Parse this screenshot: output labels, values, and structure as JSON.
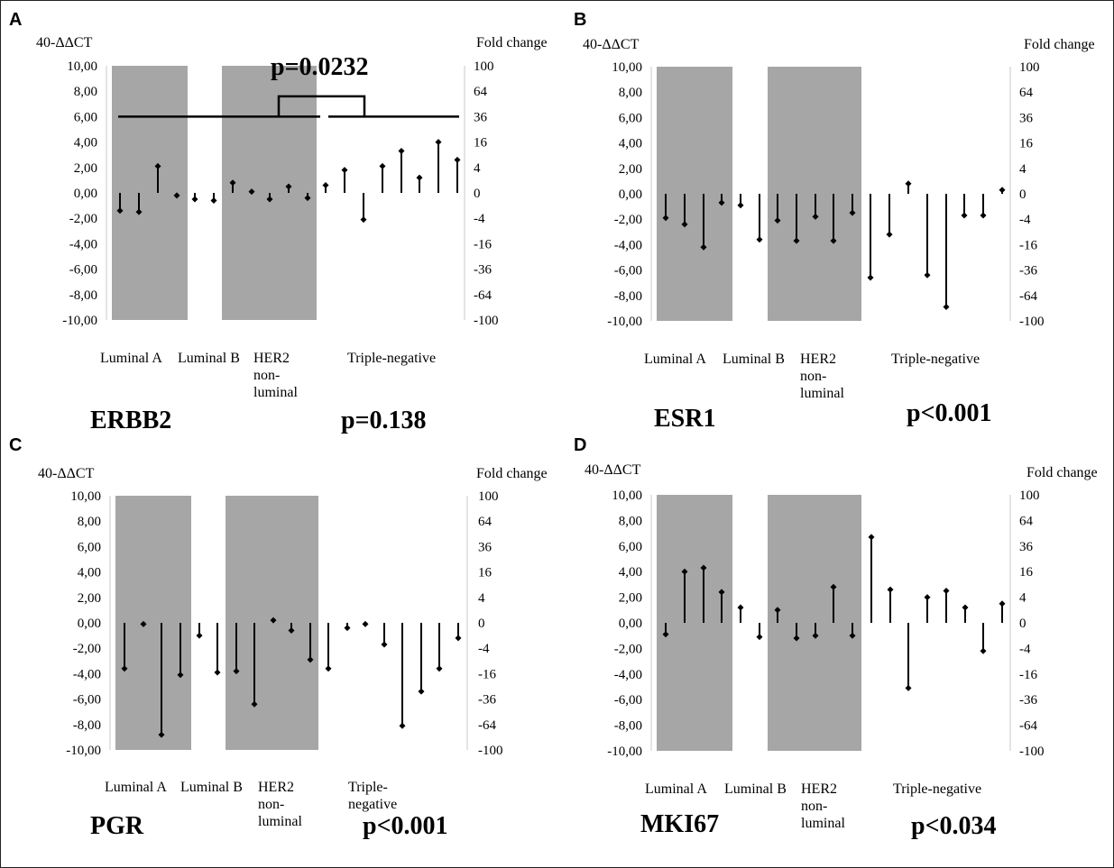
{
  "chart_data": [
    {
      "panel": "A",
      "type": "bar",
      "gene": "ERBB2",
      "p_value": "p=0.138",
      "bracket_p_value": "p=0.0232",
      "bracket_level": 6,
      "left_axis_title": "40-ΔΔCT",
      "right_axis_title": "Fold change",
      "ylim": [
        -10,
        10
      ],
      "left_ticks": [
        "10,00",
        "8,00",
        "6,00",
        "4,00",
        "2,00",
        "0,00",
        "-2,00",
        "-4,00",
        "-6,00",
        "-8,00",
        "-10,00"
      ],
      "right_ticks": [
        "100",
        "64",
        "36",
        "16",
        "4",
        "0",
        "-4",
        "-16",
        "-36",
        "-64",
        "-100"
      ],
      "groups": [
        {
          "label": "Luminal A",
          "lines": [
            "Luminal A"
          ],
          "values": [
            -1.4,
            -1.5,
            2.1,
            -0.2
          ],
          "shaded": true
        },
        {
          "label": "Luminal B",
          "lines": [
            "Luminal B"
          ],
          "values": [
            -0.5,
            -0.6
          ],
          "shaded": false
        },
        {
          "label": "HER2 non-luminal",
          "lines": [
            "HER2",
            "non-",
            "luminal"
          ],
          "values": [
            0.8,
            0.1,
            -0.5,
            0.5,
            -0.4
          ],
          "shaded": true
        },
        {
          "label": "Triple-negative",
          "lines": [
            "Triple-negative"
          ],
          "values": [
            0.6,
            1.8,
            -2.1,
            2.1,
            3.3,
            1.2,
            4.0,
            2.6
          ],
          "shaded": false
        }
      ]
    },
    {
      "panel": "B",
      "type": "bar",
      "gene": "ESR1",
      "p_value": "p<0.001",
      "left_axis_title": "40-ΔΔCT",
      "right_axis_title": "Fold change",
      "ylim": [
        -10,
        10
      ],
      "left_ticks": [
        "10,00",
        "8,00",
        "6,00",
        "4,00",
        "2,00",
        "0,00",
        "-2,00",
        "-4,00",
        "-6,00",
        "-8,00",
        "-10,00"
      ],
      "right_ticks": [
        "100",
        "64",
        "36",
        "16",
        "4",
        "0",
        "-4",
        "-16",
        "-36",
        "-64",
        "-100"
      ],
      "groups": [
        {
          "label": "Luminal A",
          "lines": [
            "Luminal A"
          ],
          "values": [
            -1.9,
            -2.4,
            -4.2,
            -0.7
          ],
          "shaded": true
        },
        {
          "label": "Luminal B",
          "lines": [
            "Luminal B"
          ],
          "values": [
            -0.9,
            -3.6
          ],
          "shaded": false
        },
        {
          "label": "HER2 non-luminal",
          "lines": [
            "HER2",
            "non-",
            "luminal"
          ],
          "values": [
            -2.1,
            -3.7,
            -1.8,
            -3.7,
            -1.5
          ],
          "shaded": true
        },
        {
          "label": "Triple-negative",
          "lines": [
            "Triple-negative"
          ],
          "values": [
            -6.6,
            -3.2,
            0.8,
            -6.4,
            -8.9,
            -1.7,
            -1.7,
            0.3
          ],
          "shaded": false
        }
      ]
    },
    {
      "panel": "C",
      "type": "bar",
      "gene": "PGR",
      "p_value": "p<0.001",
      "left_axis_title": "40-ΔΔCT",
      "right_axis_title": "Fold change",
      "ylim": [
        -10,
        10
      ],
      "left_ticks": [
        "10,00",
        "8,00",
        "6,00",
        "4,00",
        "2,00",
        "0,00",
        "-2,00",
        "-4,00",
        "-6,00",
        "-8,00",
        "-10,00"
      ],
      "right_ticks": [
        "100",
        "64",
        "36",
        "16",
        "4",
        "0",
        "-4",
        "-16",
        "-36",
        "-64",
        "-100"
      ],
      "groups": [
        {
          "label": "Luminal A",
          "lines": [
            "Luminal A"
          ],
          "values": [
            -3.6,
            -0.1,
            -8.8,
            -4.1
          ],
          "shaded": true
        },
        {
          "label": "Luminal B",
          "lines": [
            "Luminal B"
          ],
          "values": [
            -1.0,
            -3.9
          ],
          "shaded": false
        },
        {
          "label": "HER2 non-luminal",
          "lines": [
            "HER2",
            "non-",
            "luminal"
          ],
          "values": [
            -3.8,
            -6.4,
            0.2,
            -0.6,
            -2.9
          ],
          "shaded": true
        },
        {
          "label": "Triple-negative",
          "lines": [
            "Triple-",
            "negative"
          ],
          "values": [
            -3.6,
            -0.4,
            -0.1,
            -1.7,
            -8.1,
            -5.4,
            -3.6,
            -1.2
          ],
          "shaded": false
        }
      ]
    },
    {
      "panel": "D",
      "type": "bar",
      "gene": "MKI67",
      "p_value": "p<0.034",
      "left_axis_title": "40-ΔΔCT",
      "right_axis_title": "Fold change",
      "ylim": [
        -10,
        10
      ],
      "left_ticks": [
        "10,00",
        "8,00",
        "6,00",
        "4,00",
        "2,00",
        "0,00",
        "-2,00",
        "-4,00",
        "-6,00",
        "-8,00",
        "-10,00"
      ],
      "right_ticks": [
        "100",
        "64",
        "36",
        "16",
        "4",
        "0",
        "-4",
        "-16",
        "-36",
        "-64",
        "-100"
      ],
      "groups": [
        {
          "label": "Luminal A",
          "lines": [
            "Luminal A"
          ],
          "values": [
            -0.9,
            4.0,
            4.3,
            2.4
          ],
          "shaded": true
        },
        {
          "label": "Luminal B",
          "lines": [
            "Luminal B"
          ],
          "values": [
            1.2,
            -1.1
          ],
          "shaded": false
        },
        {
          "label": "HER2 non-luminal",
          "lines": [
            "HER2",
            "non-",
            "luminal"
          ],
          "values": [
            1.0,
            -1.2,
            -1.0,
            2.8,
            -1.0
          ],
          "shaded": true
        },
        {
          "label": "Triple-negative",
          "lines": [
            "Triple-negative"
          ],
          "values": [
            6.7,
            2.6,
            -5.1,
            2.0,
            2.5,
            1.2,
            -2.2,
            1.5
          ],
          "shaded": false
        }
      ]
    }
  ],
  "colors": {
    "shade": "#a6a6a6",
    "axis": "#c8c8c8",
    "mark": "#000000",
    "background": "#ffffff"
  }
}
